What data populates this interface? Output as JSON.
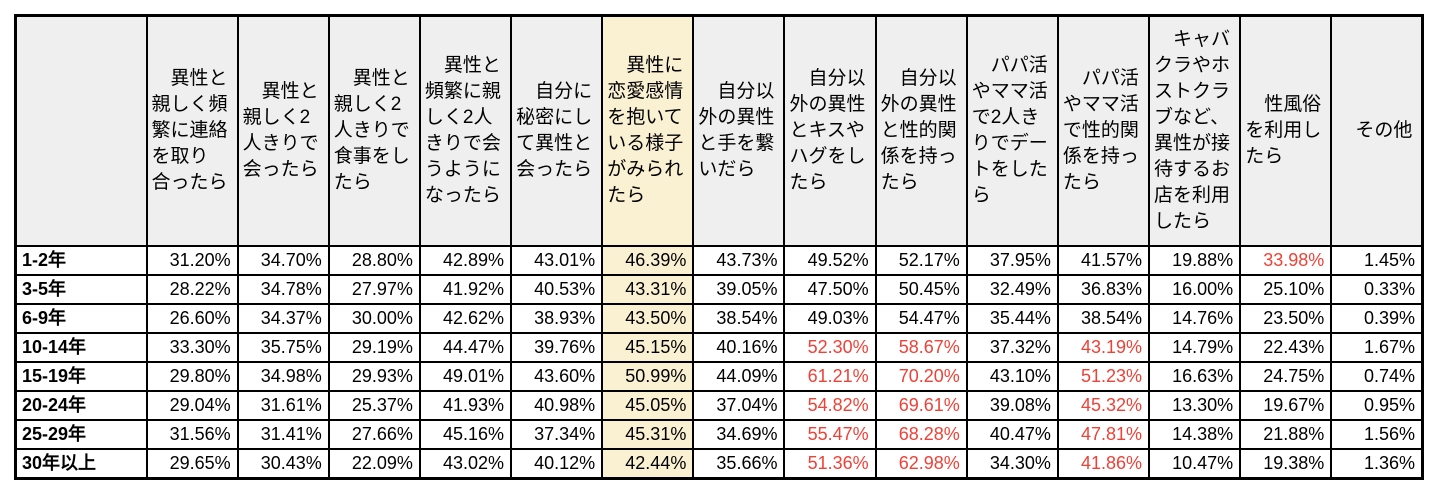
{
  "style": {
    "page_bg": "#ffffff",
    "header_bg": "#efefef",
    "highlight_bg": "#faf0d2",
    "red_text": "#ef4136",
    "border_color": "#000000"
  },
  "chart_data": {
    "type": "table",
    "unit": "percent",
    "corner_label": "",
    "columns": [
      "異性と親しく頻繁に連絡を取り合ったら",
      "異性と親しく2人きりで会ったら",
      "異性と親しく2人きりで食事をしたら",
      "異性と頻繁に親しく2人きりで会うようになったら",
      "自分に秘密にして異性と会ったら",
      "異性に恋愛感情を抱いている様子がみられたら",
      "自分以外の異性と手を繋いだら",
      "自分以外の異性とキスやハグをしたら",
      "自分以外の異性と性的関係を持ったら",
      "パパ活やママ活で2人きりでデートをしたら",
      "パパ活やママ活で性的関係を持ったら",
      "キャバクラやホストクラブなど、異性が接待するお店を利用したら",
      "性風俗を利用したら",
      "その他"
    ],
    "column_display": [
      "異性と\n親しく頻\n繁に連絡\nを取り\n合ったら",
      "異性と\n親しく2\n人きりで\n会ったら",
      "異性と\n親しく2\n人きりで\n食事をし\nたら",
      "異性と\n頻繁に親\nしく2人\nきりで会\nうように\nなったら",
      "自分に\n秘密にし\nて異性と\n会ったら",
      "異性に\n恋愛感情\nを抱いて\nいる様子\nがみられ\nたら",
      "自分以\n外の異性\nと手を繋\nいだら",
      "自分以\n外の異性\nとキスや\nハグをし\nたら",
      "自分以\n外の異性\nと性的関\n係を持っ\nたら",
      "パパ活\nやママ活\nで2人き\nりでデー\nトをした\nら",
      "パパ活\nやママ活\nで性的関\n係を持っ\nたら",
      "キャバ\nクラやホ\nストクラ\nブなど、\n異性が接\n待するお\n店を利用\nしたら",
      "性風俗\nを利用し\nたら",
      "その他"
    ],
    "highlighted_column_index": 5,
    "rows": [
      "1-2年",
      "3-5年",
      "6-9年",
      "10-14年",
      "15-19年",
      "20-24年",
      "25-29年",
      "30年以上"
    ],
    "values": [
      [
        31.2,
        34.7,
        28.8,
        42.89,
        43.01,
        46.39,
        43.73,
        49.52,
        52.17,
        37.95,
        41.57,
        19.88,
        33.98,
        1.45
      ],
      [
        28.22,
        34.78,
        27.97,
        41.92,
        40.53,
        43.31,
        39.05,
        47.5,
        50.45,
        32.49,
        36.83,
        16.0,
        25.1,
        0.33
      ],
      [
        26.6,
        34.37,
        30.0,
        42.62,
        38.93,
        43.5,
        38.54,
        49.03,
        54.47,
        35.44,
        38.54,
        14.76,
        23.5,
        0.39
      ],
      [
        33.3,
        35.75,
        29.19,
        44.47,
        39.76,
        45.15,
        40.16,
        52.3,
        58.67,
        37.32,
        43.19,
        14.79,
        22.43,
        1.67
      ],
      [
        29.8,
        34.98,
        29.93,
        49.01,
        43.6,
        50.99,
        44.09,
        61.21,
        70.2,
        43.1,
        51.23,
        16.63,
        24.75,
        0.74
      ],
      [
        29.04,
        31.61,
        25.37,
        41.93,
        40.98,
        45.05,
        37.04,
        54.82,
        69.61,
        39.08,
        45.32,
        13.3,
        19.67,
        0.95
      ],
      [
        31.56,
        31.41,
        27.66,
        45.16,
        37.34,
        45.31,
        34.69,
        55.47,
        68.28,
        40.47,
        47.81,
        14.38,
        21.88,
        1.56
      ],
      [
        29.65,
        30.43,
        22.09,
        43.02,
        40.12,
        42.44,
        35.66,
        51.36,
        62.98,
        34.3,
        41.86,
        10.47,
        19.38,
        1.36
      ]
    ],
    "red_cells": [
      [
        0,
        12
      ],
      [
        3,
        7
      ],
      [
        3,
        8
      ],
      [
        3,
        10
      ],
      [
        4,
        7
      ],
      [
        4,
        8
      ],
      [
        4,
        10
      ],
      [
        5,
        7
      ],
      [
        5,
        8
      ],
      [
        5,
        10
      ],
      [
        6,
        7
      ],
      [
        6,
        8
      ],
      [
        6,
        10
      ],
      [
        7,
        7
      ],
      [
        7,
        8
      ],
      [
        7,
        10
      ]
    ]
  }
}
